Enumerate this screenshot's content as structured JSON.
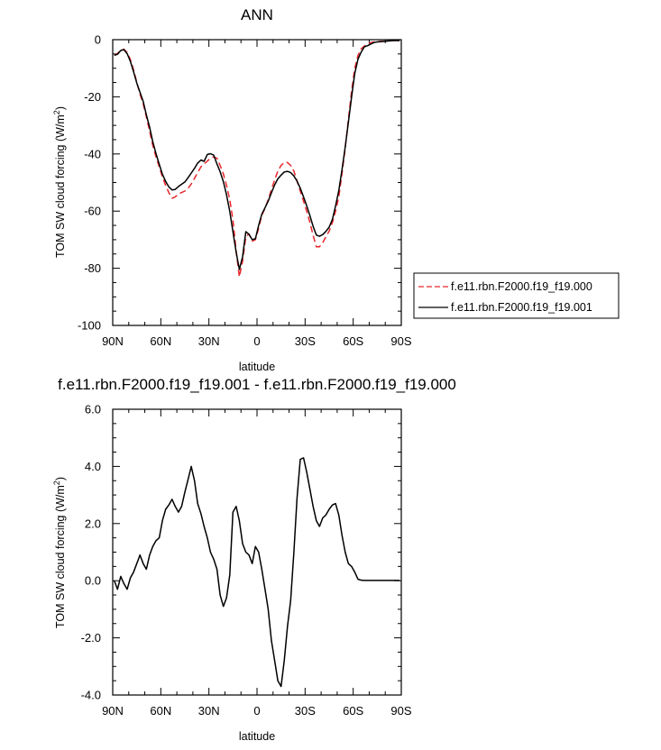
{
  "chart_data": [
    {
      "type": "line",
      "title": "ANN",
      "xlabel": "latitude",
      "ylabel": "TOM SW cloud forcing (W/m",
      "ylabel_sup": "2",
      "ylabel_end": ")",
      "xlim": [
        90,
        -90
      ],
      "ylim": [
        -100,
        0
      ],
      "x_ticks": [
        90,
        60,
        30,
        0,
        -30,
        -60,
        -90
      ],
      "x_tick_labels": [
        "90N",
        "60N",
        "30N",
        "0",
        "30S",
        "60S",
        "90S"
      ],
      "y_ticks": [
        0,
        -20,
        -40,
        -60,
        -80,
        -100
      ],
      "y_tick_labels": [
        "0",
        "-20",
        "-40",
        "-60",
        "-80",
        "-100"
      ],
      "legend_position": "right-outside",
      "series": [
        {
          "name": "f.e11.rbn.F2000.f19_f19.000",
          "color": "#e8262b",
          "dash": "dashed",
          "x": [
            89,
            87,
            85,
            83,
            81,
            79,
            77,
            75,
            73,
            71,
            69,
            67,
            65,
            63,
            61,
            59,
            57,
            55,
            53,
            51,
            49,
            47,
            45,
            43,
            41,
            39,
            37,
            35,
            33,
            31,
            29,
            27,
            25,
            23,
            21,
            19,
            17,
            15,
            13,
            11,
            9,
            7,
            5,
            3,
            1,
            -1,
            -3,
            -5,
            -7,
            -9,
            -11,
            -13,
            -15,
            -17,
            -19,
            -21,
            -23,
            -25,
            -27,
            -29,
            -31,
            -33,
            -35,
            -37,
            -39,
            -41,
            -43,
            -45,
            -47,
            -49,
            -51,
            -53,
            -55,
            -57,
            -59,
            -61,
            -63,
            -65,
            -67,
            -69,
            -71,
            -73,
            -75,
            -77,
            -79,
            -81,
            -83,
            -85,
            -87,
            -89
          ],
          "y": [
            -5.5,
            -4.8,
            -3.8,
            -3.3,
            -4.5,
            -7,
            -10.5,
            -15,
            -19,
            -22.5,
            -27,
            -32,
            -37,
            -41,
            -44.5,
            -48,
            -51,
            -53.5,
            -55.5,
            -55,
            -54,
            -53.5,
            -53,
            -52,
            -50.5,
            -48.5,
            -46.5,
            -44.5,
            -43.5,
            -42.5,
            -41.5,
            -41,
            -41.5,
            -44,
            -47,
            -51,
            -56,
            -63,
            -74,
            -83,
            -77.5,
            -69,
            -68,
            -70.5,
            -70,
            -66,
            -61.5,
            -59,
            -56,
            -52.5,
            -49,
            -46,
            -44,
            -43,
            -43,
            -44,
            -46,
            -49.5,
            -53,
            -56.5,
            -60,
            -64,
            -68.5,
            -72.5,
            -72.5,
            -71,
            -69,
            -67,
            -64,
            -60,
            -55,
            -47,
            -38,
            -28,
            -18,
            -10,
            -5.5,
            -3.2,
            -2.2,
            -1.5,
            -1,
            -0.8,
            -0.7,
            -0.6,
            -0.6,
            -0.5,
            -0.4,
            -0.3,
            -0.3,
            -0.3
          ]
        },
        {
          "name": "f.e11.rbn.F2000.f19_f19.001",
          "color": "#000000",
          "dash": "solid",
          "x": [
            89,
            87,
            85,
            83,
            81,
            79,
            77,
            75,
            73,
            71,
            69,
            67,
            65,
            63,
            61,
            59,
            57,
            55,
            53,
            51,
            49,
            47,
            45,
            43,
            41,
            39,
            37,
            35,
            33,
            31,
            29,
            27,
            25,
            23,
            21,
            19,
            17,
            15,
            13,
            11,
            9,
            7,
            5,
            3,
            1,
            -1,
            -3,
            -5,
            -7,
            -9,
            -11,
            -13,
            -15,
            -17,
            -19,
            -21,
            -23,
            -25,
            -27,
            -29,
            -31,
            -33,
            -35,
            -37,
            -39,
            -41,
            -43,
            -45,
            -47,
            -49,
            -51,
            -53,
            -55,
            -57,
            -59,
            -61,
            -63,
            -65,
            -67,
            -69,
            -71,
            -73,
            -75,
            -77,
            -79,
            -81,
            -83,
            -85,
            -87,
            -89
          ],
          "y": [
            -5.5,
            -5.1,
            -3.8,
            -3.5,
            -4.9,
            -7.6,
            -11.2,
            -15.2,
            -18.4,
            -21.6,
            -26.3,
            -30.6,
            -35.7,
            -39.9,
            -43.6,
            -47.1,
            -49.6,
            -51.5,
            -52.6,
            -52.4,
            -51.4,
            -50.6,
            -49.8,
            -48.3,
            -46.7,
            -45,
            -43.2,
            -42.1,
            -42.6,
            -40.2,
            -39.9,
            -40.4,
            -43.5,
            -46.2,
            -49.7,
            -54.3,
            -60.1,
            -67.2,
            -74.4,
            -80.4,
            -76,
            -67.2,
            -68.1,
            -70,
            -69.7,
            -65,
            -61.1,
            -58.8,
            -56.5,
            -53.6,
            -50.8,
            -48.7,
            -47.4,
            -46.3,
            -46.1,
            -46.5,
            -47.7,
            -49.5,
            -52,
            -55,
            -58.1,
            -61.6,
            -65.3,
            -68.4,
            -68.8,
            -68.2,
            -67.1,
            -65.6,
            -62.9,
            -58.2,
            -52.8,
            -45.6,
            -37.6,
            -29,
            -20,
            -11.8,
            -6.8,
            -4.3,
            -2.5,
            -2.1,
            -1.5,
            -1,
            -0.8,
            -0.7,
            -0.6,
            -0.5,
            -0.4,
            -0.3,
            -0.3,
            -0.3
          ]
        }
      ]
    },
    {
      "type": "line",
      "title": "f.e11.rbn.F2000.f19_f19.001 - f.e11.rbn.F2000.f19_f19.000",
      "xlabel": "latitude",
      "ylabel": "TOM SW cloud forcing (W/m",
      "ylabel_sup": "2",
      "ylabel_end": ")",
      "xlim": [
        90,
        -90
      ],
      "ylim": [
        -4,
        6
      ],
      "x_ticks": [
        90,
        60,
        30,
        0,
        -30,
        -60,
        -90
      ],
      "x_tick_labels": [
        "90N",
        "60N",
        "30N",
        "0",
        "30S",
        "60S",
        "90S"
      ],
      "y_ticks": [
        6,
        4,
        2,
        0,
        -2,
        -4
      ],
      "y_tick_labels": [
        "6.0",
        "4.0",
        "2.0",
        "0.0",
        "-2.0",
        "-4.0"
      ],
      "series": [
        {
          "color": "#000000",
          "dash": "solid",
          "x": [
            89,
            87,
            85,
            83,
            81,
            79,
            77,
            75,
            73,
            71,
            69,
            67,
            65,
            63,
            61,
            59,
            57,
            55,
            53,
            51,
            49,
            47,
            45,
            43,
            41,
            39,
            37,
            35,
            33,
            31,
            29,
            27,
            25,
            23,
            21,
            19,
            17,
            15,
            13,
            11,
            9,
            7,
            5,
            3,
            1,
            -1,
            -3,
            -5,
            -7,
            -9,
            -11,
            -13,
            -15,
            -17,
            -19,
            -21,
            -23,
            -25,
            -27,
            -29,
            -31,
            -33,
            -35,
            -37,
            -39,
            -41,
            -43,
            -45,
            -47,
            -49,
            -51,
            -53,
            -55,
            -57,
            -59,
            -61,
            -63,
            -65,
            -67,
            -69,
            -71,
            -73,
            -75,
            -77,
            -79,
            -81,
            -83,
            -85,
            -87,
            -89
          ],
          "y": [
            0,
            -0.3,
            0.15,
            -0.1,
            -0.3,
            0.1,
            0.3,
            0.6,
            0.9,
            0.6,
            0.4,
            0.9,
            1.2,
            1.4,
            1.5,
            2.1,
            2.5,
            2.65,
            2.85,
            2.6,
            2.4,
            2.6,
            3.1,
            3.55,
            4.0,
            3.5,
            2.7,
            2.35,
            1.9,
            1.5,
            1.0,
            0.75,
            0.4,
            -0.5,
            -0.9,
            -0.6,
            0.2,
            2.4,
            2.6,
            2.1,
            1.3,
            1.0,
            0.9,
            0.6,
            1.2,
            1.0,
            0.4,
            -0.3,
            -1.0,
            -2.1,
            -2.8,
            -3.5,
            -3.7,
            -2.8,
            -1.6,
            -0.7,
            1.0,
            2.9,
            4.25,
            4.3,
            3.8,
            3.2,
            2.6,
            2.1,
            1.9,
            2.2,
            2.3,
            2.5,
            2.65,
            2.7,
            2.3,
            1.6,
            1.0,
            0.6,
            0.5,
            0.3,
            0.05,
            0.02,
            0.01,
            0.01,
            0.01,
            0.01,
            0.01,
            0.01,
            0.01,
            0.01,
            0.01,
            0.01,
            0.01,
            0.01
          ]
        }
      ]
    }
  ]
}
